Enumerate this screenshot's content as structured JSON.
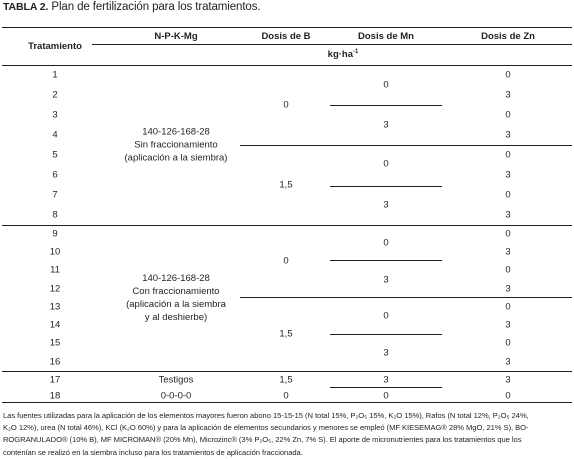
{
  "caption": {
    "label": "TABLA 2.",
    "text": " Plan de fertilización para los tratamientos."
  },
  "headers": {
    "tratamiento": "Tratamiento",
    "npkmg": "N-P-K-Mg",
    "dosis_b": "Dosis de B",
    "dosis_mn": "Dosis de Mn",
    "dosis_zn": "Dosis de Zn"
  },
  "unit": {
    "base": "kg·ha",
    "sup": "-1"
  },
  "treatments": [
    "1",
    "2",
    "3",
    "4",
    "5",
    "6",
    "7",
    "8",
    "9",
    "10",
    "11",
    "12",
    "13",
    "14",
    "15",
    "16",
    "17",
    "18"
  ],
  "npk_groups": [
    {
      "lines": [
        "140-126-168-28",
        "Sin fraccionamiento",
        "(aplicación a la siembra)"
      ]
    },
    {
      "lines": [
        "140-126-168-28",
        "Con fraccionamiento",
        "(aplicación a la siembra",
        "y al deshierbe)"
      ]
    },
    {
      "lines": [
        "Testigos"
      ]
    },
    {
      "lines": [
        "0-0-0-0"
      ]
    }
  ],
  "b_values": [
    "0",
    "1,5",
    "0",
    "1,5",
    "1,5",
    "0"
  ],
  "mn_values": [
    "0",
    "3",
    "0",
    "3",
    "0",
    "3",
    "0",
    "3",
    "3",
    "0"
  ],
  "zn_values": [
    "0",
    "3",
    "0",
    "3",
    "0",
    "3",
    "0",
    "3",
    "0",
    "3",
    "0",
    "3",
    "0",
    "3",
    "0",
    "3",
    "3",
    "0"
  ],
  "footnote": {
    "line1": "Las fuentes utilizadas para la aplicación de los elementos mayores fueron abono 15-15-15 (N total 15%, P₂O₅ 15%, K₂O 15%), Rafos (N total 12%, P₂O₅ 24%,",
    "line2": "K₂O 12%), urea (N total 46%), KCl (K₂O 60%) y para la aplicación de elementos secundarios y menores se empleó (MF KIESEMAG® 28% MgO, 21% S), BO-",
    "line3": "ROGRANULADO® (10% B), MF MICROMAN® (20% Mn), Microzinc® (3% P₂O₅, 22% Zn, 7% S). El aporte de micronutrientes para los tratamientos que los",
    "line4": "contenían se realizó en la siembra incluso para los tratamientos de aplicación fraccionada."
  }
}
